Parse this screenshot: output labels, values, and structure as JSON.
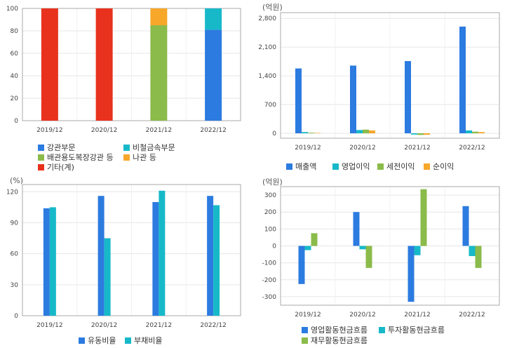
{
  "colors": {
    "blue": "#2c7be0",
    "teal": "#17b9c9",
    "green": "#8bbb4a",
    "orange": "#f7a72a",
    "red": "#e8321e",
    "grid": "#e6e6e6",
    "axis": "#aaaaaa"
  },
  "chart_data": [
    {
      "id": "segments",
      "type": "bar",
      "stacked": true,
      "unit": "",
      "categories": [
        "2019/12",
        "2020/12",
        "2021/12",
        "2022/12"
      ],
      "ylim": [
        0,
        100
      ],
      "yticks": [
        0,
        20,
        40,
        60,
        80,
        100
      ],
      "series": [
        {
          "name": "강관부문",
          "color": "#2c7be0",
          "values": [
            0,
            0,
            0,
            81
          ]
        },
        {
          "name": "비철금속부문",
          "color": "#17b9c9",
          "values": [
            0,
            0,
            0,
            19
          ]
        },
        {
          "name": "배관용도복장강관 등",
          "color": "#8bbb4a",
          "values": [
            0,
            0,
            85,
            0
          ]
        },
        {
          "name": "나관 등",
          "color": "#f7a72a",
          "values": [
            0,
            0,
            15,
            0
          ]
        },
        {
          "name": "기타(계)",
          "color": "#e8321e",
          "values": [
            100,
            100,
            0,
            0
          ]
        }
      ]
    },
    {
      "id": "income",
      "type": "bar",
      "unit": "(억원)",
      "categories": [
        "2019/12",
        "2020/12",
        "2021/12",
        "2022/12"
      ],
      "ylim": [
        -120,
        2940
      ],
      "yticks": [
        0,
        700,
        1400,
        2100,
        2800
      ],
      "ytick_labels": [
        "0",
        "700",
        "1,400",
        "2,100",
        "2,800"
      ],
      "series": [
        {
          "name": "매출액",
          "color": "#2c7be0",
          "values": [
            1580,
            1650,
            1760,
            2600
          ]
        },
        {
          "name": "영업이익",
          "color": "#17b9c9",
          "values": [
            30,
            80,
            -30,
            70
          ]
        },
        {
          "name": "세전이익",
          "color": "#8bbb4a",
          "values": [
            15,
            90,
            -40,
            40
          ]
        },
        {
          "name": "순이익",
          "color": "#f7a72a",
          "values": [
            10,
            70,
            -35,
            30
          ]
        }
      ]
    },
    {
      "id": "ratios",
      "type": "bar",
      "unit": "(%)",
      "categories": [
        "2019/12",
        "2020/12",
        "2021/12",
        "2022/12"
      ],
      "ylim": [
        0,
        127
      ],
      "yticks": [
        0,
        30,
        60,
        90,
        120
      ],
      "series": [
        {
          "name": "유동비율",
          "color": "#2c7be0",
          "values": [
            104,
            116,
            110,
            116
          ]
        },
        {
          "name": "부채비율",
          "color": "#17b9c9",
          "values": [
            105,
            75,
            121,
            107
          ]
        }
      ]
    },
    {
      "id": "cashflow",
      "type": "bar",
      "unit": "(억원)",
      "categories": [
        "2019/12",
        "2020/12",
        "2021/12",
        "2022/12"
      ],
      "ylim": [
        -350,
        350
      ],
      "yticks": [
        -300,
        -200,
        -100,
        0,
        100,
        200,
        300
      ],
      "series": [
        {
          "name": "영업활동현금흐름",
          "color": "#2c7be0",
          "values": [
            -225,
            200,
            -330,
            235
          ]
        },
        {
          "name": "투자활동현금흐름",
          "color": "#17b9c9",
          "values": [
            -25,
            -20,
            -55,
            -60
          ]
        },
        {
          "name": "재무활동현금흐름",
          "color": "#8bbb4a",
          "values": [
            75,
            -130,
            335,
            -130
          ]
        }
      ]
    }
  ]
}
